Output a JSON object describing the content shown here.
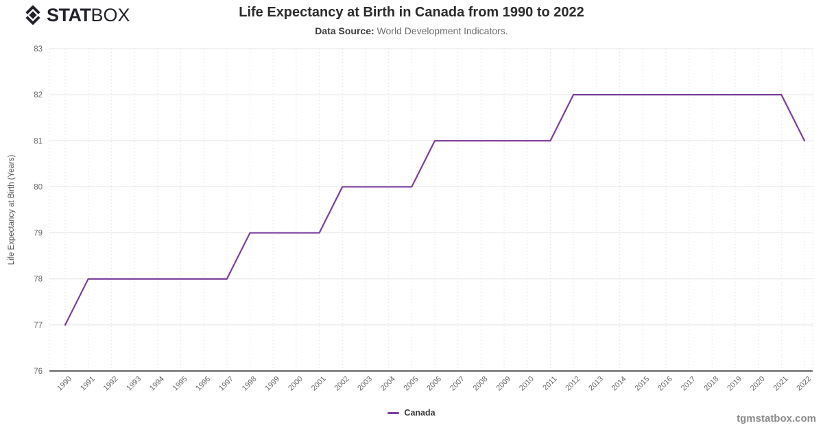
{
  "brand": {
    "stat": "STAT",
    "box": "BOX"
  },
  "header": {
    "title": "Life Expectancy at Birth in Canada from 1990 to 2022",
    "subtitle_label": "Data Source:",
    "subtitle_rest": " World Development Indicators."
  },
  "watermark": "tgmstatbox.com",
  "chart_data": {
    "type": "line",
    "title": "Life Expectancy at Birth in Canada from 1990 to 2022",
    "x": [
      "1990",
      "1991",
      "1992",
      "1993",
      "1994",
      "1995",
      "1996",
      "1997",
      "1998",
      "1999",
      "2000",
      "2001",
      "2002",
      "2003",
      "2004",
      "2005",
      "2006",
      "2007",
      "2008",
      "2009",
      "2010",
      "2011",
      "2012",
      "2013",
      "2014",
      "2015",
      "2016",
      "2017",
      "2018",
      "2019",
      "2020",
      "2021",
      "2022"
    ],
    "series": [
      {
        "name": "Canada",
        "color": "#7a3e9b",
        "values": [
          77,
          78,
          78,
          78,
          78,
          78,
          78,
          78,
          79,
          79,
          79,
          79,
          80,
          80,
          80,
          80,
          81,
          81,
          81,
          81,
          81,
          81,
          82,
          82,
          82,
          82,
          82,
          82,
          82,
          82,
          82,
          82,
          81
        ]
      }
    ],
    "xlabel": "",
    "ylabel": "Life Expectancy at Birth (Years)",
    "ylim": [
      76,
      83
    ],
    "ytick_step": 1,
    "grid": true,
    "legend_position": "bottom"
  }
}
